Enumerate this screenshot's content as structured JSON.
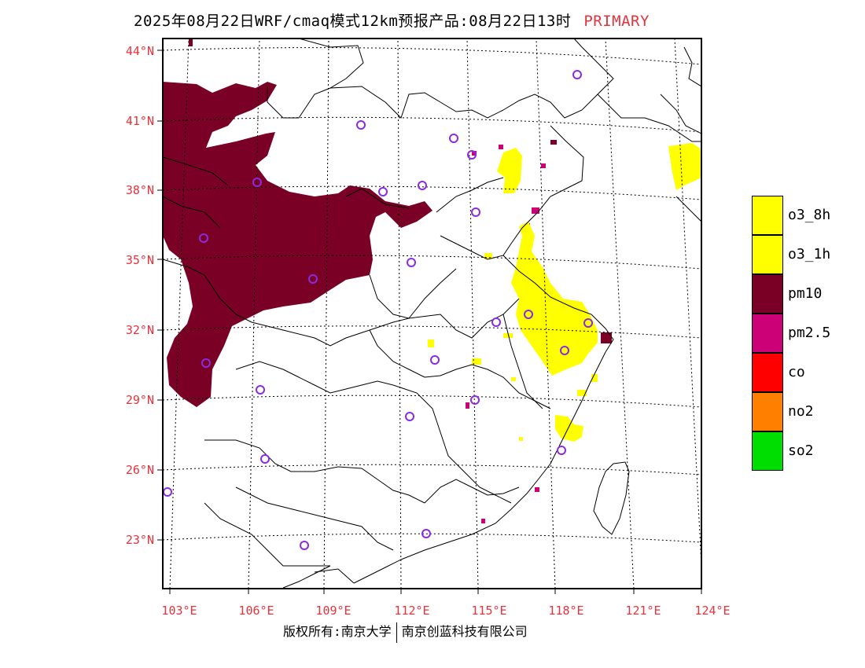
{
  "title": {
    "main": "2025年08月22日WRF/cmaq模式12km预报产品:08月22日13时",
    "tag": "PRIMARY",
    "tag_color": "#e8323c"
  },
  "lat_labels": [
    "44°N",
    "41°N",
    "38°N",
    "35°N",
    "32°N",
    "29°N",
    "26°N",
    "23°N"
  ],
  "lon_labels": [
    "103°E",
    "106°E",
    "109°E",
    "112°E",
    "115°E",
    "118°E",
    "121°E",
    "124°E"
  ],
  "legend": [
    {
      "label": "o3_8h",
      "color": "#ffff00"
    },
    {
      "label": "o3_1h",
      "color": "#ffff00"
    },
    {
      "label": "pm10",
      "color": "#7a0026"
    },
    {
      "label": "pm2.5",
      "color": "#cc0077"
    },
    {
      "label": "co",
      "color": "#ff0000"
    },
    {
      "label": "no2",
      "color": "#ff8000"
    },
    {
      "label": "so2",
      "color": "#00dd00"
    }
  ],
  "footer": {
    "left": "版权所有:南京大学",
    "right": "南京创蓝科技有限公司"
  },
  "map_colors": {
    "pm10": "#7a0026",
    "pm25": "#cc0077",
    "o3": "#ffff00",
    "station": "#8a2be2",
    "label": "#e8323c"
  }
}
